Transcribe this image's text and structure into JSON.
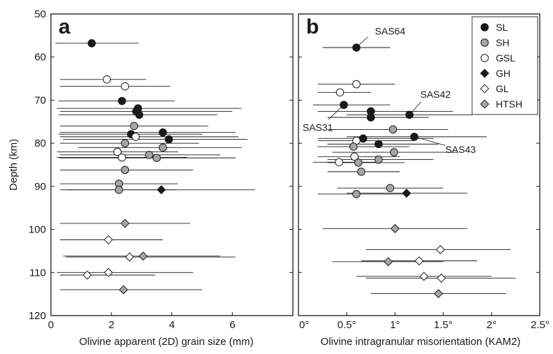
{
  "chart_data": {
    "type": "scatter",
    "y_axis": {
      "label": "Depth (km)",
      "ylim": [
        120,
        50
      ],
      "ticks": [
        50,
        60,
        70,
        80,
        90,
        100,
        110,
        120
      ],
      "inverted": true
    },
    "categories": [
      {
        "key": "SL",
        "label": "SL",
        "marker": "circle",
        "fill": "#1a1a1a"
      },
      {
        "key": "SH",
        "label": "SH",
        "marker": "circle",
        "fill": "#a6a6a6"
      },
      {
        "key": "GSL",
        "label": "GSL",
        "marker": "circle",
        "fill": "#ffffff"
      },
      {
        "key": "GH",
        "label": "GH",
        "marker": "diamond",
        "fill": "#1a1a1a"
      },
      {
        "key": "GL",
        "label": "GL",
        "marker": "diamond",
        "fill": "#ffffff"
      },
      {
        "key": "HTSH",
        "label": "HTSH",
        "marker": "diamond",
        "fill": "#a6a6a6"
      }
    ],
    "legend_position": "top-right of panel b",
    "panels": [
      {
        "id": "a",
        "letter": "a",
        "xlabel": "Olivine apparent (2D) grain size (mm)",
        "xlim": [
          0,
          8
        ],
        "x_ticks": [
          0,
          2,
          4,
          6
        ],
        "x_tick_labels": [
          "0",
          "2",
          "4",
          "6"
        ],
        "points": [
          {
            "cat": "SL",
            "x": 1.35,
            "y": 56.8,
            "xmin": 0.15,
            "xmax": 2.9
          },
          {
            "cat": "GSL",
            "x": 1.85,
            "y": 65.2,
            "xmin": 0.3,
            "xmax": 3.15
          },
          {
            "cat": "GSL",
            "x": 2.45,
            "y": 66.8,
            "xmin": 0.3,
            "xmax": 3.95
          },
          {
            "cat": "SL",
            "x": 2.35,
            "y": 70.2,
            "xmin": 0.25,
            "xmax": 4.1
          },
          {
            "cat": "SL",
            "x": 2.88,
            "y": 71.9,
            "xmin": 0.2,
            "xmax": 6.3
          },
          {
            "cat": "SL",
            "x": 2.82,
            "y": 72.6,
            "xmin": 0.3,
            "xmax": 6.0
          },
          {
            "cat": "SL",
            "x": 2.92,
            "y": 73.4,
            "xmin": 0.25,
            "xmax": 5.5
          },
          {
            "cat": "SH",
            "x": 2.75,
            "y": 76.0,
            "xmin": 0.3,
            "xmax": 5.2
          },
          {
            "cat": "SL",
            "x": 3.7,
            "y": 77.5,
            "xmin": 0.3,
            "xmax": 6.1
          },
          {
            "cat": "SL",
            "x": 2.65,
            "y": 77.9,
            "xmin": 0.25,
            "xmax": 5.0
          },
          {
            "cat": "GSL",
            "x": 2.8,
            "y": 78.5,
            "xmin": 0.3,
            "xmax": 6.2
          },
          {
            "cat": "SL",
            "x": 3.9,
            "y": 79.1,
            "xmin": 0.4,
            "xmax": 6.5
          },
          {
            "cat": "SH",
            "x": 2.45,
            "y": 80.0,
            "xmin": 0.3,
            "xmax": 4.9
          },
          {
            "cat": "SH",
            "x": 3.7,
            "y": 81.0,
            "xmin": 0.9,
            "xmax": 6.3
          },
          {
            "cat": "GSL",
            "x": 2.2,
            "y": 82.0,
            "xmin": 0.2,
            "xmax": 4.2
          },
          {
            "cat": "SH",
            "x": 3.25,
            "y": 82.7,
            "xmin": 0.3,
            "xmax": 5.6
          },
          {
            "cat": "GSL",
            "x": 2.35,
            "y": 83.3,
            "xmin": 0.2,
            "xmax": 4.5
          },
          {
            "cat": "SH",
            "x": 3.5,
            "y": 83.4,
            "xmin": 0.3,
            "xmax": 6.1
          },
          {
            "cat": "SH",
            "x": 2.45,
            "y": 86.2,
            "xmin": 0.3,
            "xmax": 4.7
          },
          {
            "cat": "SH",
            "x": 2.25,
            "y": 89.4,
            "xmin": 0.3,
            "xmax": 4.2
          },
          {
            "cat": "SH",
            "x": 2.25,
            "y": 90.8,
            "xmin": 0.3,
            "xmax": 4.1
          },
          {
            "cat": "GH",
            "x": 3.65,
            "y": 90.8,
            "xmin": 0.5,
            "xmax": 6.75
          },
          {
            "cat": "HTSH",
            "x": 2.45,
            "y": 98.6,
            "xmin": 0.3,
            "xmax": 4.6
          },
          {
            "cat": "GL",
            "x": 1.9,
            "y": 102.4,
            "xmin": 0.3,
            "xmax": 3.7
          },
          {
            "cat": "HTSH",
            "x": 3.05,
            "y": 106.2,
            "xmin": 0.4,
            "xmax": 5.6
          },
          {
            "cat": "GL",
            "x": 2.6,
            "y": 106.4,
            "xmin": 0.5,
            "xmax": 6.1
          },
          {
            "cat": "GL",
            "x": 1.9,
            "y": 110.0,
            "xmin": 0.2,
            "xmax": 4.7
          },
          {
            "cat": "GL",
            "x": 1.2,
            "y": 110.6,
            "xmin": 0.3,
            "xmax": 3.45
          },
          {
            "cat": "HTSH",
            "x": 2.4,
            "y": 114.0,
            "xmin": 0.3,
            "xmax": 5.0
          }
        ]
      },
      {
        "id": "b",
        "letter": "b",
        "xlabel": "Olivine intragranular misorientation (KAM2)",
        "xlim": [
          0,
          2.5
        ],
        "x_ticks": [
          0,
          0.5,
          1,
          1.5,
          2,
          2.5
        ],
        "x_tick_labels": [
          "0°",
          "0.5°",
          "1°",
          "1.5°",
          "2°",
          "2.5°"
        ],
        "points": [
          {
            "cat": "SL",
            "x": 0.6,
            "y": 57.8,
            "xmin": 0.25,
            "xmax": 0.95
          },
          {
            "cat": "GSL",
            "x": 0.6,
            "y": 66.3,
            "xmin": 0.2,
            "xmax": 1.0
          },
          {
            "cat": "GSL",
            "x": 0.43,
            "y": 68.2,
            "xmin": 0.2,
            "xmax": 0.75
          },
          {
            "cat": "SL",
            "x": 0.47,
            "y": 71.1,
            "xmin": 0.15,
            "xmax": 0.95
          },
          {
            "cat": "SL",
            "x": 0.75,
            "y": 72.6,
            "xmin": 0.2,
            "xmax": 1.6
          },
          {
            "cat": "SL",
            "x": 1.15,
            "y": 73.4,
            "xmin": 0.5,
            "xmax": 1.8
          },
          {
            "cat": "SL",
            "x": 0.75,
            "y": 74.0,
            "xmin": 0.3,
            "xmax": 1.35
          },
          {
            "cat": "SH",
            "x": 0.98,
            "y": 76.8,
            "xmin": 0.3,
            "xmax": 1.55
          },
          {
            "cat": "SL",
            "x": 1.2,
            "y": 78.5,
            "xmin": 0.5,
            "xmax": 1.95
          },
          {
            "cat": "SL",
            "x": 0.67,
            "y": 78.9,
            "xmin": 0.2,
            "xmax": 1.4
          },
          {
            "cat": "GSL",
            "x": 0.6,
            "y": 79.4,
            "xmin": 0.2,
            "xmax": 1.2
          },
          {
            "cat": "SL",
            "x": 0.83,
            "y": 80.2,
            "xmin": 0.3,
            "xmax": 1.45
          },
          {
            "cat": "SH",
            "x": 0.57,
            "y": 80.8,
            "xmin": 0.2,
            "xmax": 1.15
          },
          {
            "cat": "SH",
            "x": 0.99,
            "y": 82.1,
            "xmin": 0.35,
            "xmax": 1.65
          },
          {
            "cat": "GSL",
            "x": 0.58,
            "y": 83.1,
            "xmin": 0.2,
            "xmax": 1.05
          },
          {
            "cat": "SH",
            "x": 0.83,
            "y": 83.8,
            "xmin": 0.3,
            "xmax": 1.4
          },
          {
            "cat": "GSL",
            "x": 0.42,
            "y": 84.4,
            "xmin": 0.15,
            "xmax": 0.8
          },
          {
            "cat": "SH",
            "x": 0.62,
            "y": 84.5,
            "xmin": 0.3,
            "xmax": 1.1
          },
          {
            "cat": "SH",
            "x": 0.65,
            "y": 86.6,
            "xmin": 0.3,
            "xmax": 1.05
          },
          {
            "cat": "SH",
            "x": 0.95,
            "y": 90.4,
            "xmin": 0.4,
            "xmax": 1.5
          },
          {
            "cat": "SH",
            "x": 0.6,
            "y": 91.8,
            "xmin": 0.2,
            "xmax": 1.15
          },
          {
            "cat": "GH",
            "x": 1.12,
            "y": 91.6,
            "xmin": 0.5,
            "xmax": 1.75
          },
          {
            "cat": "HTSH",
            "x": 1.0,
            "y": 99.8,
            "xmin": 0.25,
            "xmax": 1.75
          },
          {
            "cat": "GL",
            "x": 1.47,
            "y": 104.7,
            "xmin": 0.7,
            "xmax": 2.2
          },
          {
            "cat": "GL",
            "x": 1.25,
            "y": 107.3,
            "xmin": 0.65,
            "xmax": 1.85
          },
          {
            "cat": "HTSH",
            "x": 0.93,
            "y": 107.5,
            "xmin": 0.35,
            "xmax": 1.5
          },
          {
            "cat": "GL",
            "x": 1.3,
            "y": 110.9,
            "xmin": 0.6,
            "xmax": 2.0
          },
          {
            "cat": "GL",
            "x": 1.48,
            "y": 111.3,
            "xmin": 0.7,
            "xmax": 2.25
          },
          {
            "cat": "HTSH",
            "x": 1.45,
            "y": 114.9,
            "xmin": 0.75,
            "xmax": 2.15
          }
        ],
        "annotations": [
          {
            "text": "SAS64",
            "x": 0.6,
            "y": 57.8,
            "label_x": 0.95,
            "label_y": 54.0,
            "anchor": "middle",
            "leader_to": [
              0.72,
              55.3
            ]
          },
          {
            "text": "SAS42",
            "x": 1.15,
            "y": 73.4,
            "label_x": 1.42,
            "label_y": 68.6,
            "anchor": "middle",
            "leader_to": [
              1.27,
              70.4
            ]
          },
          {
            "text": "SAS31",
            "x": 0.47,
            "y": 71.1,
            "label_x": 0.2,
            "label_y": 76.3,
            "anchor": "middle",
            "leader_to": [
              0.31,
              74.5
            ]
          },
          {
            "text": "SAS43",
            "x": 1.2,
            "y": 78.5,
            "label_x": 1.68,
            "label_y": 81.4,
            "anchor": "middle",
            "leader_to": [
              1.52,
              80.5
            ]
          }
        ]
      }
    ]
  }
}
